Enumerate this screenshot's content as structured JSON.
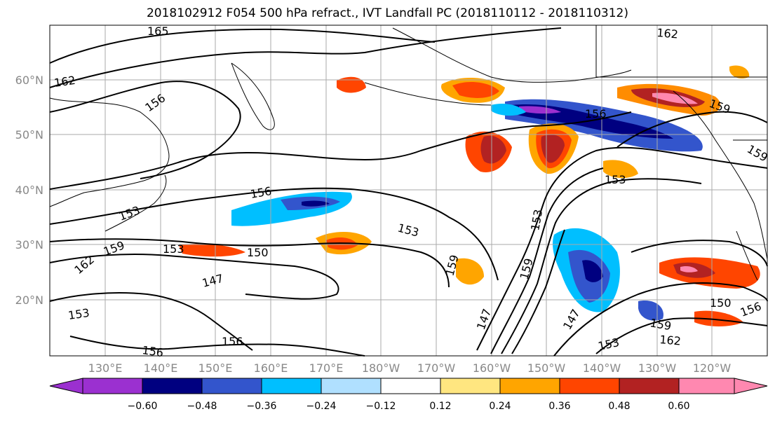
{
  "title": "2018102912 F054 500 hPa refract., IVT Landfall PC (2018110112 - 2018110312)",
  "lat_labels": [
    "60°N",
    "50°N",
    "40°N",
    "30°N",
    "20°N"
  ],
  "lon_labels": [
    "130°E",
    "140°E",
    "150°E",
    "160°E",
    "170°E",
    "180°W",
    "170°W",
    "160°W",
    "150°W",
    "140°W",
    "130°W",
    "120°W"
  ],
  "colorbar": {
    "ticks": [
      "−0.60",
      "−0.48",
      "−0.36",
      "−0.24",
      "−0.12",
      "0.12",
      "0.24",
      "0.36",
      "0.48",
      "0.60"
    ],
    "colors": [
      "#9b30d0",
      "#000080",
      "#3355cc",
      "#00bfff",
      "#b0e0ff",
      "#ffffff",
      "#ffe680",
      "#ffa500",
      "#ff4500",
      "#b22222",
      "#ff88b0"
    ]
  },
  "contour_labels": [
    "165",
    "162",
    "156",
    "156",
    "153",
    "159",
    "162",
    "147",
    "153",
    "156",
    "156",
    "153",
    "150",
    "153",
    "159",
    "147",
    "147",
    "153",
    "156",
    "153",
    "159",
    "150",
    "156",
    "159",
    "162",
    "153",
    "159",
    "162",
    "159"
  ],
  "colors": {
    "grid": "#aaaaaa",
    "coast": "#000000",
    "contour": "#000000"
  }
}
